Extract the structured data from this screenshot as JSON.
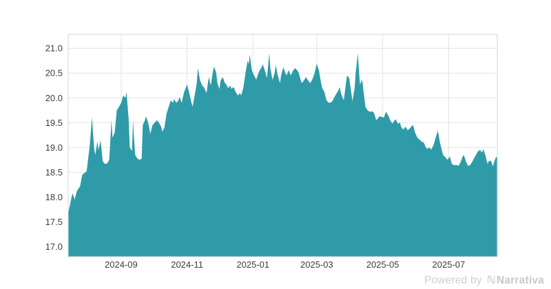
{
  "watermark": {
    "powered_by": "Powered by",
    "logo_glyph": "ℕ",
    "brand": "Narrativa"
  },
  "colors": {
    "area_fill": "#2f9ba8",
    "gridline": "#e4e4e4",
    "plot_border": "#d6d6d6",
    "tick_label": "#3c3c3c",
    "watermark_text": "#cdcdcd"
  },
  "chart_data": {
    "type": "area",
    "title": "",
    "xlabel": "",
    "ylabel": "",
    "grid": true,
    "legend": false,
    "x_axis_type": "date",
    "x_range": [
      "2024-07-14",
      "2025-08-15"
    ],
    "ylim": [
      16.8,
      21.28
    ],
    "y_ticks": [
      {
        "v": 17.0,
        "label": "17.0"
      },
      {
        "v": 17.5,
        "label": "17.5"
      },
      {
        "v": 18.0,
        "label": "18.0"
      },
      {
        "v": 18.5,
        "label": "18.5"
      },
      {
        "v": 19.0,
        "label": "19.0"
      },
      {
        "v": 19.5,
        "label": "19.5"
      },
      {
        "v": 20.0,
        "label": "20.0"
      },
      {
        "v": 20.5,
        "label": "20.5"
      },
      {
        "v": 21.0,
        "label": "21.0"
      }
    ],
    "x_ticks": [
      {
        "date": "2024-09-01",
        "label": "2024-09"
      },
      {
        "date": "2024-11-01",
        "label": "2024-11"
      },
      {
        "date": "2025-01-01",
        "label": "2025-01"
      },
      {
        "date": "2025-03-01",
        "label": "2025-03"
      },
      {
        "date": "2025-05-01",
        "label": "2025-05"
      },
      {
        "date": "2025-07-01",
        "label": "2025-07"
      }
    ],
    "series": [
      {
        "name": "value",
        "x": [
          "2024-07-14",
          "2024-07-17",
          "2024-07-18",
          "2024-07-20",
          "2024-07-22",
          "2024-07-25",
          "2024-07-27",
          "2024-07-31",
          "2024-08-01",
          "2024-08-03",
          "2024-08-05",
          "2024-08-07",
          "2024-08-08",
          "2024-08-10",
          "2024-08-11",
          "2024-08-13",
          "2024-08-15",
          "2024-08-17",
          "2024-08-19",
          "2024-08-21",
          "2024-08-23",
          "2024-08-24",
          "2024-08-26",
          "2024-08-28",
          "2024-08-30",
          "2024-09-01",
          "2024-09-03",
          "2024-09-05",
          "2024-09-06",
          "2024-09-08",
          "2024-09-09",
          "2024-09-11",
          "2024-09-12",
          "2024-09-13",
          "2024-09-14",
          "2024-09-16",
          "2024-09-18",
          "2024-09-20",
          "2024-09-21",
          "2024-09-23",
          "2024-09-24",
          "2024-09-26",
          "2024-09-28",
          "2024-09-30",
          "2024-10-02",
          "2024-10-04",
          "2024-10-06",
          "2024-10-08",
          "2024-10-09",
          "2024-10-11",
          "2024-10-13",
          "2024-10-15",
          "2024-10-17",
          "2024-10-19",
          "2024-10-20",
          "2024-10-22",
          "2024-10-24",
          "2024-10-25",
          "2024-10-27",
          "2024-10-29",
          "2024-11-01",
          "2024-11-03",
          "2024-11-04",
          "2024-11-06",
          "2024-11-08",
          "2024-11-10",
          "2024-11-11",
          "2024-11-13",
          "2024-11-15",
          "2024-11-17",
          "2024-11-19",
          "2024-11-21",
          "2024-11-23",
          "2024-11-25",
          "2024-11-26",
          "2024-11-28",
          "2024-11-29",
          "2024-12-01",
          "2024-12-02",
          "2024-12-04",
          "2024-12-06",
          "2024-12-07",
          "2024-12-09",
          "2024-12-11",
          "2024-12-12",
          "2024-12-14",
          "2024-12-16",
          "2024-12-18",
          "2024-12-20",
          "2024-12-21",
          "2024-12-23",
          "2024-12-25",
          "2024-12-27",
          "2024-12-28",
          "2024-12-29",
          "2024-12-31",
          "2025-01-02",
          "2025-01-04",
          "2025-01-06",
          "2025-01-07",
          "2025-01-09",
          "2025-01-10",
          "2025-01-12",
          "2025-01-14",
          "2025-01-16",
          "2025-01-17",
          "2025-01-19",
          "2025-01-21",
          "2025-01-22",
          "2025-01-24",
          "2025-01-26",
          "2025-01-27",
          "2025-01-29",
          "2025-01-31",
          "2025-02-01",
          "2025-02-03",
          "2025-02-05",
          "2025-02-07",
          "2025-02-09",
          "2025-02-11",
          "2025-02-12",
          "2025-02-15",
          "2025-02-17",
          "2025-02-19",
          "2025-02-21",
          "2025-02-23",
          "2025-02-25",
          "2025-02-27",
          "2025-03-01",
          "2025-03-03",
          "2025-03-05",
          "2025-03-06",
          "2025-03-08",
          "2025-03-10",
          "2025-03-12",
          "2025-03-15",
          "2025-03-17",
          "2025-03-19",
          "2025-03-21",
          "2025-03-22",
          "2025-03-24",
          "2025-03-26",
          "2025-03-28",
          "2025-03-29",
          "2025-03-31",
          "2025-04-02",
          "2025-04-03",
          "2025-04-05",
          "2025-04-06",
          "2025-04-08",
          "2025-04-09",
          "2025-04-10",
          "2025-04-12",
          "2025-04-14",
          "2025-04-15",
          "2025-04-17",
          "2025-04-19",
          "2025-04-21",
          "2025-04-23",
          "2025-04-25",
          "2025-04-27",
          "2025-04-28",
          "2025-04-30",
          "2025-05-02",
          "2025-05-04",
          "2025-05-06",
          "2025-05-08",
          "2025-05-10",
          "2025-05-11",
          "2025-05-13",
          "2025-05-15",
          "2025-05-17",
          "2025-05-18",
          "2025-05-20",
          "2025-05-22",
          "2025-05-24",
          "2025-05-26",
          "2025-05-28",
          "2025-05-29",
          "2025-05-31",
          "2025-06-02",
          "2025-06-04",
          "2025-06-06",
          "2025-06-08",
          "2025-06-10",
          "2025-06-11",
          "2025-06-13",
          "2025-06-15",
          "2025-06-17",
          "2025-06-19",
          "2025-06-21",
          "2025-06-23",
          "2025-06-25",
          "2025-06-26",
          "2025-06-28",
          "2025-06-30",
          "2025-07-02",
          "2025-07-04",
          "2025-07-06",
          "2025-07-08",
          "2025-07-10",
          "2025-07-12",
          "2025-07-14",
          "2025-07-15",
          "2025-07-17",
          "2025-07-19",
          "2025-07-21",
          "2025-07-23",
          "2025-07-25",
          "2025-07-27",
          "2025-07-28",
          "2025-07-30",
          "2025-08-01",
          "2025-08-02",
          "2025-08-04",
          "2025-08-06",
          "2025-08-07",
          "2025-08-09",
          "2025-08-11",
          "2025-08-12",
          "2025-08-14",
          "2025-08-15"
        ],
        "y": [
          17.68,
          17.98,
          18.08,
          17.95,
          18.12,
          18.22,
          18.45,
          18.52,
          18.68,
          19.05,
          19.61,
          18.98,
          18.85,
          19.12,
          18.95,
          19.14,
          18.72,
          18.67,
          18.68,
          18.75,
          19.55,
          19.2,
          19.3,
          19.75,
          19.82,
          19.9,
          20.05,
          20.0,
          20.12,
          19.55,
          19.0,
          18.93,
          19.55,
          19.15,
          18.85,
          18.78,
          18.75,
          18.78,
          19.45,
          19.55,
          19.63,
          19.5,
          19.28,
          19.45,
          19.5,
          19.55,
          19.5,
          19.42,
          19.32,
          19.4,
          19.68,
          19.82,
          19.95,
          19.9,
          19.98,
          19.9,
          19.95,
          20.02,
          19.9,
          20.1,
          20.27,
          20.1,
          20.0,
          19.82,
          20.05,
          20.3,
          20.6,
          20.35,
          20.25,
          20.2,
          20.1,
          20.42,
          20.25,
          20.55,
          20.63,
          20.5,
          20.3,
          20.18,
          20.35,
          20.42,
          20.3,
          20.28,
          20.2,
          20.25,
          20.18,
          20.22,
          20.12,
          20.05,
          20.1,
          20.05,
          20.2,
          20.5,
          20.75,
          20.68,
          20.87,
          20.55,
          20.45,
          20.37,
          20.5,
          20.55,
          20.62,
          20.68,
          20.55,
          20.4,
          20.9,
          20.6,
          20.36,
          20.5,
          20.66,
          20.45,
          20.3,
          20.45,
          20.62,
          20.5,
          20.45,
          20.56,
          20.45,
          20.55,
          20.6,
          20.55,
          20.52,
          20.3,
          20.35,
          20.42,
          20.35,
          20.3,
          20.38,
          20.5,
          20.69,
          20.55,
          20.3,
          20.2,
          20.12,
          19.95,
          19.9,
          19.92,
          20.0,
          20.08,
          20.15,
          20.22,
          20.05,
          19.95,
          20.3,
          20.45,
          20.4,
          20.1,
          19.93,
          20.2,
          20.5,
          20.9,
          20.55,
          20.27,
          20.37,
          20.0,
          19.82,
          19.75,
          19.72,
          19.73,
          19.7,
          19.55,
          19.6,
          19.63,
          19.62,
          19.6,
          19.72,
          19.65,
          19.55,
          19.48,
          19.52,
          19.57,
          19.48,
          19.5,
          19.42,
          19.36,
          19.42,
          19.35,
          19.38,
          19.44,
          19.45,
          19.3,
          19.2,
          19.16,
          19.12,
          19.1,
          19.0,
          18.97,
          19.0,
          18.96,
          19.05,
          19.2,
          19.34,
          19.1,
          18.92,
          18.85,
          18.8,
          18.75,
          18.82,
          18.67,
          18.64,
          18.65,
          18.63,
          18.7,
          18.82,
          18.85,
          18.72,
          18.63,
          18.65,
          18.72,
          18.8,
          18.88,
          18.92,
          18.95,
          18.9,
          18.97,
          18.85,
          18.67,
          18.72,
          18.74,
          18.62,
          18.7,
          18.82,
          18.78
        ]
      }
    ]
  }
}
